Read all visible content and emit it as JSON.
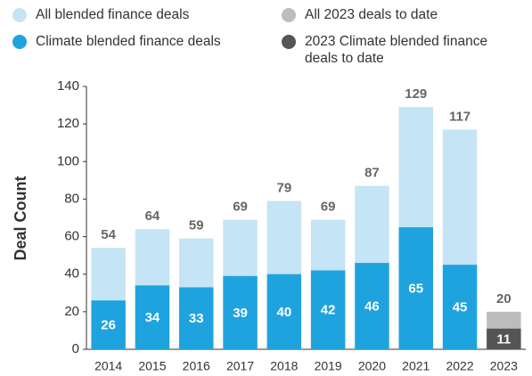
{
  "chart_data": {
    "type": "bar",
    "bar_mode": "overlap",
    "y_label": "Deal Count",
    "categories": [
      "2014",
      "2015",
      "2016",
      "2017",
      "2018",
      "2019",
      "2020",
      "2021",
      "2022",
      "2023"
    ],
    "series": [
      {
        "name": "All blended finance deals",
        "color": "#c5e4f5",
        "values": [
          54,
          64,
          59,
          69,
          79,
          69,
          87,
          129,
          117,
          null
        ]
      },
      {
        "name": "Climate blended finance deals",
        "color": "#1fa3de",
        "values": [
          26,
          34,
          33,
          39,
          40,
          42,
          46,
          65,
          45,
          null
        ]
      },
      {
        "name": "All 2023 deals to date",
        "color": "#bdbdbd",
        "values": [
          null,
          null,
          null,
          null,
          null,
          null,
          null,
          null,
          null,
          20
        ]
      },
      {
        "name": "2023 Climate blended finance deals to date",
        "color": "#555555",
        "values": [
          null,
          null,
          null,
          null,
          null,
          null,
          null,
          null,
          null,
          11
        ]
      }
    ],
    "ylim": [
      0,
      140
    ],
    "yticks": [
      0,
      20,
      40,
      60,
      80,
      100,
      120,
      140
    ]
  }
}
